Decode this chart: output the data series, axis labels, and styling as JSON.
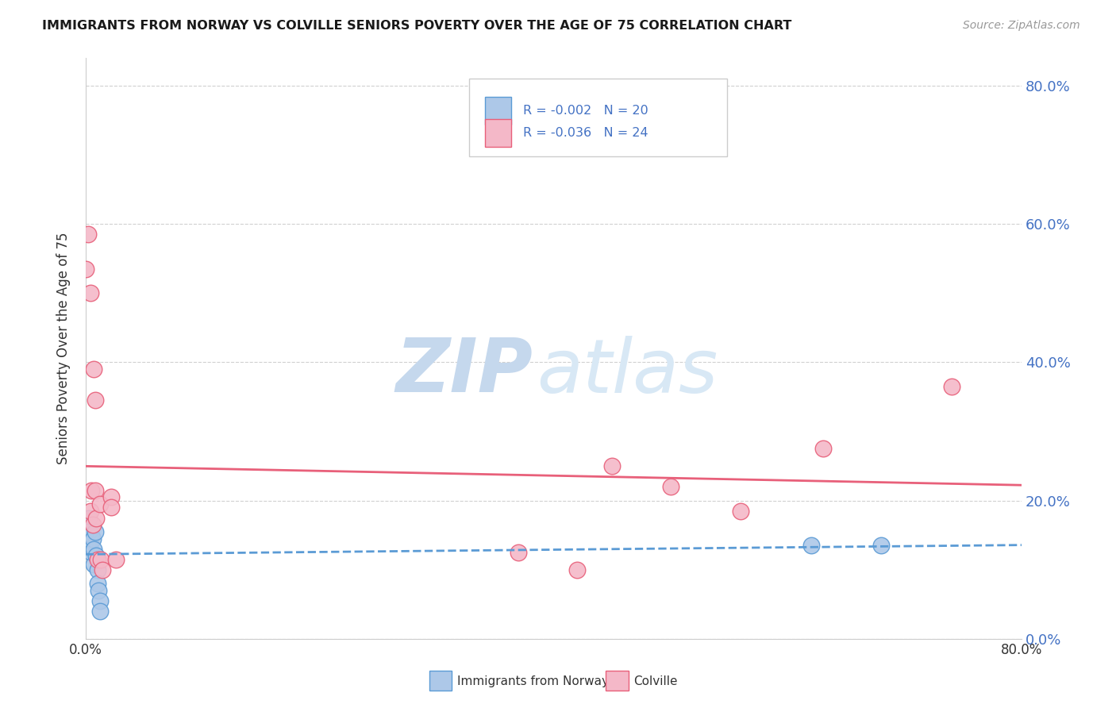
{
  "title": "IMMIGRANTS FROM NORWAY VS COLVILLE SENIORS POVERTY OVER THE AGE OF 75 CORRELATION CHART",
  "source": "Source: ZipAtlas.com",
  "ylabel": "Seniors Poverty Over the Age of 75",
  "legend_norway": "Immigrants from Norway",
  "legend_colville": "Colville",
  "norway_R": -0.002,
  "norway_N": 20,
  "colville_R": -0.036,
  "colville_N": 24,
  "norway_color": "#adc8e8",
  "norway_edge_color": "#5b9bd5",
  "colville_color": "#f4b8c8",
  "colville_edge_color": "#e8607a",
  "norway_line_color": "#5b9bd5",
  "colville_line_color": "#e8607a",
  "norway_x": [
    0.0,
    0.002,
    0.003,
    0.003,
    0.004,
    0.004,
    0.005,
    0.005,
    0.006,
    0.007,
    0.007,
    0.008,
    0.009,
    0.01,
    0.01,
    0.011,
    0.012,
    0.012,
    0.62,
    0.68
  ],
  "norway_y": [
    0.155,
    0.165,
    0.175,
    0.155,
    0.145,
    0.13,
    0.15,
    0.125,
    0.145,
    0.13,
    0.108,
    0.155,
    0.12,
    0.1,
    0.08,
    0.07,
    0.055,
    0.04,
    0.135,
    0.135
  ],
  "colville_x": [
    0.0,
    0.002,
    0.004,
    0.004,
    0.005,
    0.006,
    0.007,
    0.008,
    0.008,
    0.009,
    0.01,
    0.012,
    0.013,
    0.014,
    0.022,
    0.022,
    0.026,
    0.37,
    0.42,
    0.45,
    0.5,
    0.56,
    0.63,
    0.74
  ],
  "colville_y": [
    0.535,
    0.585,
    0.5,
    0.185,
    0.215,
    0.165,
    0.39,
    0.345,
    0.215,
    0.175,
    0.115,
    0.195,
    0.115,
    0.1,
    0.205,
    0.19,
    0.115,
    0.125,
    0.1,
    0.25,
    0.22,
    0.185,
    0.275,
    0.365
  ],
  "xlim": [
    0.0,
    0.8
  ],
  "ylim": [
    0.0,
    0.84
  ],
  "yticks": [
    0.0,
    0.2,
    0.4,
    0.6,
    0.8
  ],
  "ytick_labels": [
    "0.0%",
    "20.0%",
    "40.0%",
    "60.0%",
    "80.0%"
  ],
  "background_color": "#ffffff",
  "grid_color": "#d0d0d0",
  "watermark_zip_color": "#c5d8ed",
  "watermark_atlas_color": "#d8e8f5"
}
